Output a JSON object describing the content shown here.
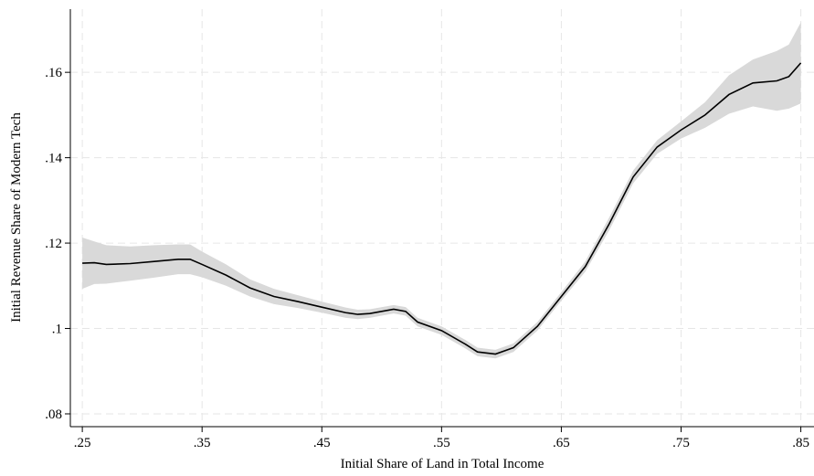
{
  "chart_data": {
    "type": "line",
    "xlabel": "Initial Share of Land in Total Income",
    "ylabel": "Initial Revenue Share of Modern Tech",
    "x": [
      0.25,
      0.26,
      0.27,
      0.29,
      0.31,
      0.33,
      0.34,
      0.35,
      0.37,
      0.39,
      0.41,
      0.43,
      0.45,
      0.47,
      0.48,
      0.49,
      0.51,
      0.52,
      0.53,
      0.55,
      0.57,
      0.58,
      0.595,
      0.61,
      0.63,
      0.65,
      0.67,
      0.69,
      0.71,
      0.73,
      0.75,
      0.77,
      0.79,
      0.81,
      0.83,
      0.84,
      0.85
    ],
    "values": [
      0.1153,
      0.1154,
      0.115,
      0.1152,
      0.1157,
      0.1162,
      0.1162,
      0.115,
      0.1125,
      0.1095,
      0.1075,
      0.1063,
      0.105,
      0.1037,
      0.1033,
      0.1035,
      0.1045,
      0.104,
      0.1015,
      0.0995,
      0.0963,
      0.0945,
      0.094,
      0.0955,
      0.1005,
      0.1075,
      0.1145,
      0.1245,
      0.1355,
      0.1425,
      0.1465,
      0.15,
      0.1548,
      0.1575,
      0.158,
      0.159,
      0.1622
    ],
    "color": "#000000",
    "band": {
      "color": "#d9d9d9",
      "lower": [
        0.1093,
        0.1104,
        0.1105,
        0.1112,
        0.1119,
        0.1127,
        0.1127,
        0.112,
        0.11,
        0.1075,
        0.1057,
        0.1048,
        0.1037,
        0.1025,
        0.1022,
        0.1025,
        0.1035,
        0.103,
        0.1005,
        0.0985,
        0.0953,
        0.0935,
        0.093,
        0.0945,
        0.0995,
        0.1065,
        0.1133,
        0.123,
        0.134,
        0.1409,
        0.1445,
        0.147,
        0.1503,
        0.152,
        0.151,
        0.1515,
        0.1527
      ],
      "upper": [
        0.1213,
        0.1204,
        0.1195,
        0.1192,
        0.1195,
        0.1197,
        0.1197,
        0.118,
        0.115,
        0.1115,
        0.1093,
        0.1078,
        0.1063,
        0.1049,
        0.1044,
        0.1045,
        0.1055,
        0.105,
        0.1025,
        0.1005,
        0.0973,
        0.0955,
        0.095,
        0.0965,
        0.1015,
        0.1085,
        0.1157,
        0.126,
        0.137,
        0.1441,
        0.1485,
        0.153,
        0.1593,
        0.163,
        0.165,
        0.1665,
        0.1717
      ]
    },
    "xlim": [
      0.24,
      0.861
    ],
    "ylim": [
      0.077,
      0.1748
    ],
    "xticks": [
      {
        "value": 0.25,
        "label": ".25"
      },
      {
        "value": 0.35,
        "label": ".35"
      },
      {
        "value": 0.45,
        "label": ".45"
      },
      {
        "value": 0.55,
        "label": ".55"
      },
      {
        "value": 0.65,
        "label": ".65"
      },
      {
        "value": 0.75,
        "label": ".75"
      },
      {
        "value": 0.85,
        "label": ".85"
      }
    ],
    "yticks": [
      {
        "value": 0.08,
        "label": ".08"
      },
      {
        "value": 0.1,
        "label": ".1"
      },
      {
        "value": 0.12,
        "label": ".12"
      },
      {
        "value": 0.14,
        "label": ".14"
      },
      {
        "value": 0.16,
        "label": ".16"
      }
    ],
    "grid": true
  }
}
